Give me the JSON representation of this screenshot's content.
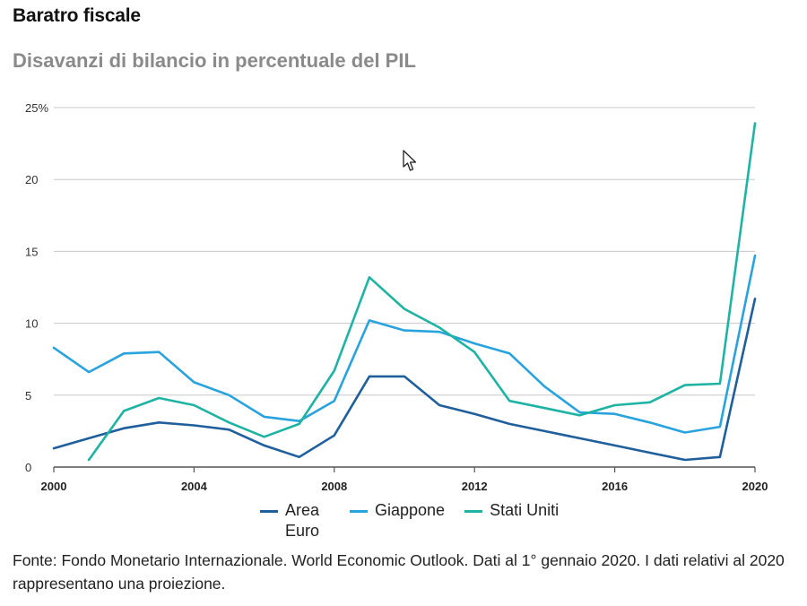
{
  "header": {
    "title": "Baratro fiscale",
    "subtitle": "Disavanzi di bilancio in percentuale del PIL"
  },
  "source_note": "Fonte: Fondo Monetario Internazionale. World Economic Outlook. Dati al 1° gennaio 2020. I dati relativi al 2020 rappresentano una proiezione.",
  "chart_data": {
    "type": "line",
    "title": "Disavanzi di bilancio in percentuale del PIL",
    "xlabel": "",
    "ylabel": "",
    "xlim": [
      2000,
      2020
    ],
    "ylim": [
      0,
      25
    ],
    "grid": true,
    "x_ticks": [
      "2000",
      "2004",
      "2008",
      "2012",
      "2016",
      "2020"
    ],
    "y_ticks": [
      "0",
      "5",
      "10",
      "15",
      "20",
      "25%"
    ],
    "legend_position": "bottom",
    "series": [
      {
        "name": "Area Euro",
        "color": "#1f5f9c",
        "x": [
          2000,
          2001,
          2002,
          2003,
          2004,
          2005,
          2006,
          2007,
          2008,
          2009,
          2010,
          2011,
          2012,
          2013,
          2014,
          2015,
          2016,
          2017,
          2018,
          2019,
          2020
        ],
        "values": [
          1.3,
          2.0,
          2.7,
          3.1,
          2.9,
          2.6,
          1.5,
          0.7,
          2.2,
          6.3,
          6.3,
          4.3,
          3.7,
          3.0,
          2.5,
          2.0,
          1.5,
          1.0,
          0.5,
          0.7,
          11.7
        ]
      },
      {
        "name": "Giappone",
        "color": "#29a3dd",
        "x": [
          2000,
          2001,
          2002,
          2003,
          2004,
          2005,
          2006,
          2007,
          2008,
          2009,
          2010,
          2011,
          2012,
          2013,
          2014,
          2015,
          2016,
          2017,
          2018,
          2019,
          2020
        ],
        "values": [
          8.3,
          6.6,
          7.9,
          8.0,
          5.9,
          5.0,
          3.5,
          3.2,
          4.6,
          10.2,
          9.5,
          9.4,
          8.6,
          7.9,
          5.6,
          3.8,
          3.7,
          3.1,
          2.4,
          2.8,
          14.7
        ]
      },
      {
        "name": "Stati Uniti",
        "color": "#1fb3a4",
        "x": [
          2001,
          2002,
          2003,
          2004,
          2005,
          2006,
          2007,
          2008,
          2009,
          2010,
          2011,
          2012,
          2013,
          2014,
          2015,
          2016,
          2017,
          2018,
          2019,
          2020
        ],
        "values": [
          0.5,
          3.9,
          4.8,
          4.3,
          3.1,
          2.1,
          3.0,
          6.7,
          13.2,
          11.0,
          9.7,
          8.0,
          4.6,
          4.1,
          3.6,
          4.3,
          4.5,
          5.7,
          5.8,
          23.9
        ]
      }
    ]
  }
}
